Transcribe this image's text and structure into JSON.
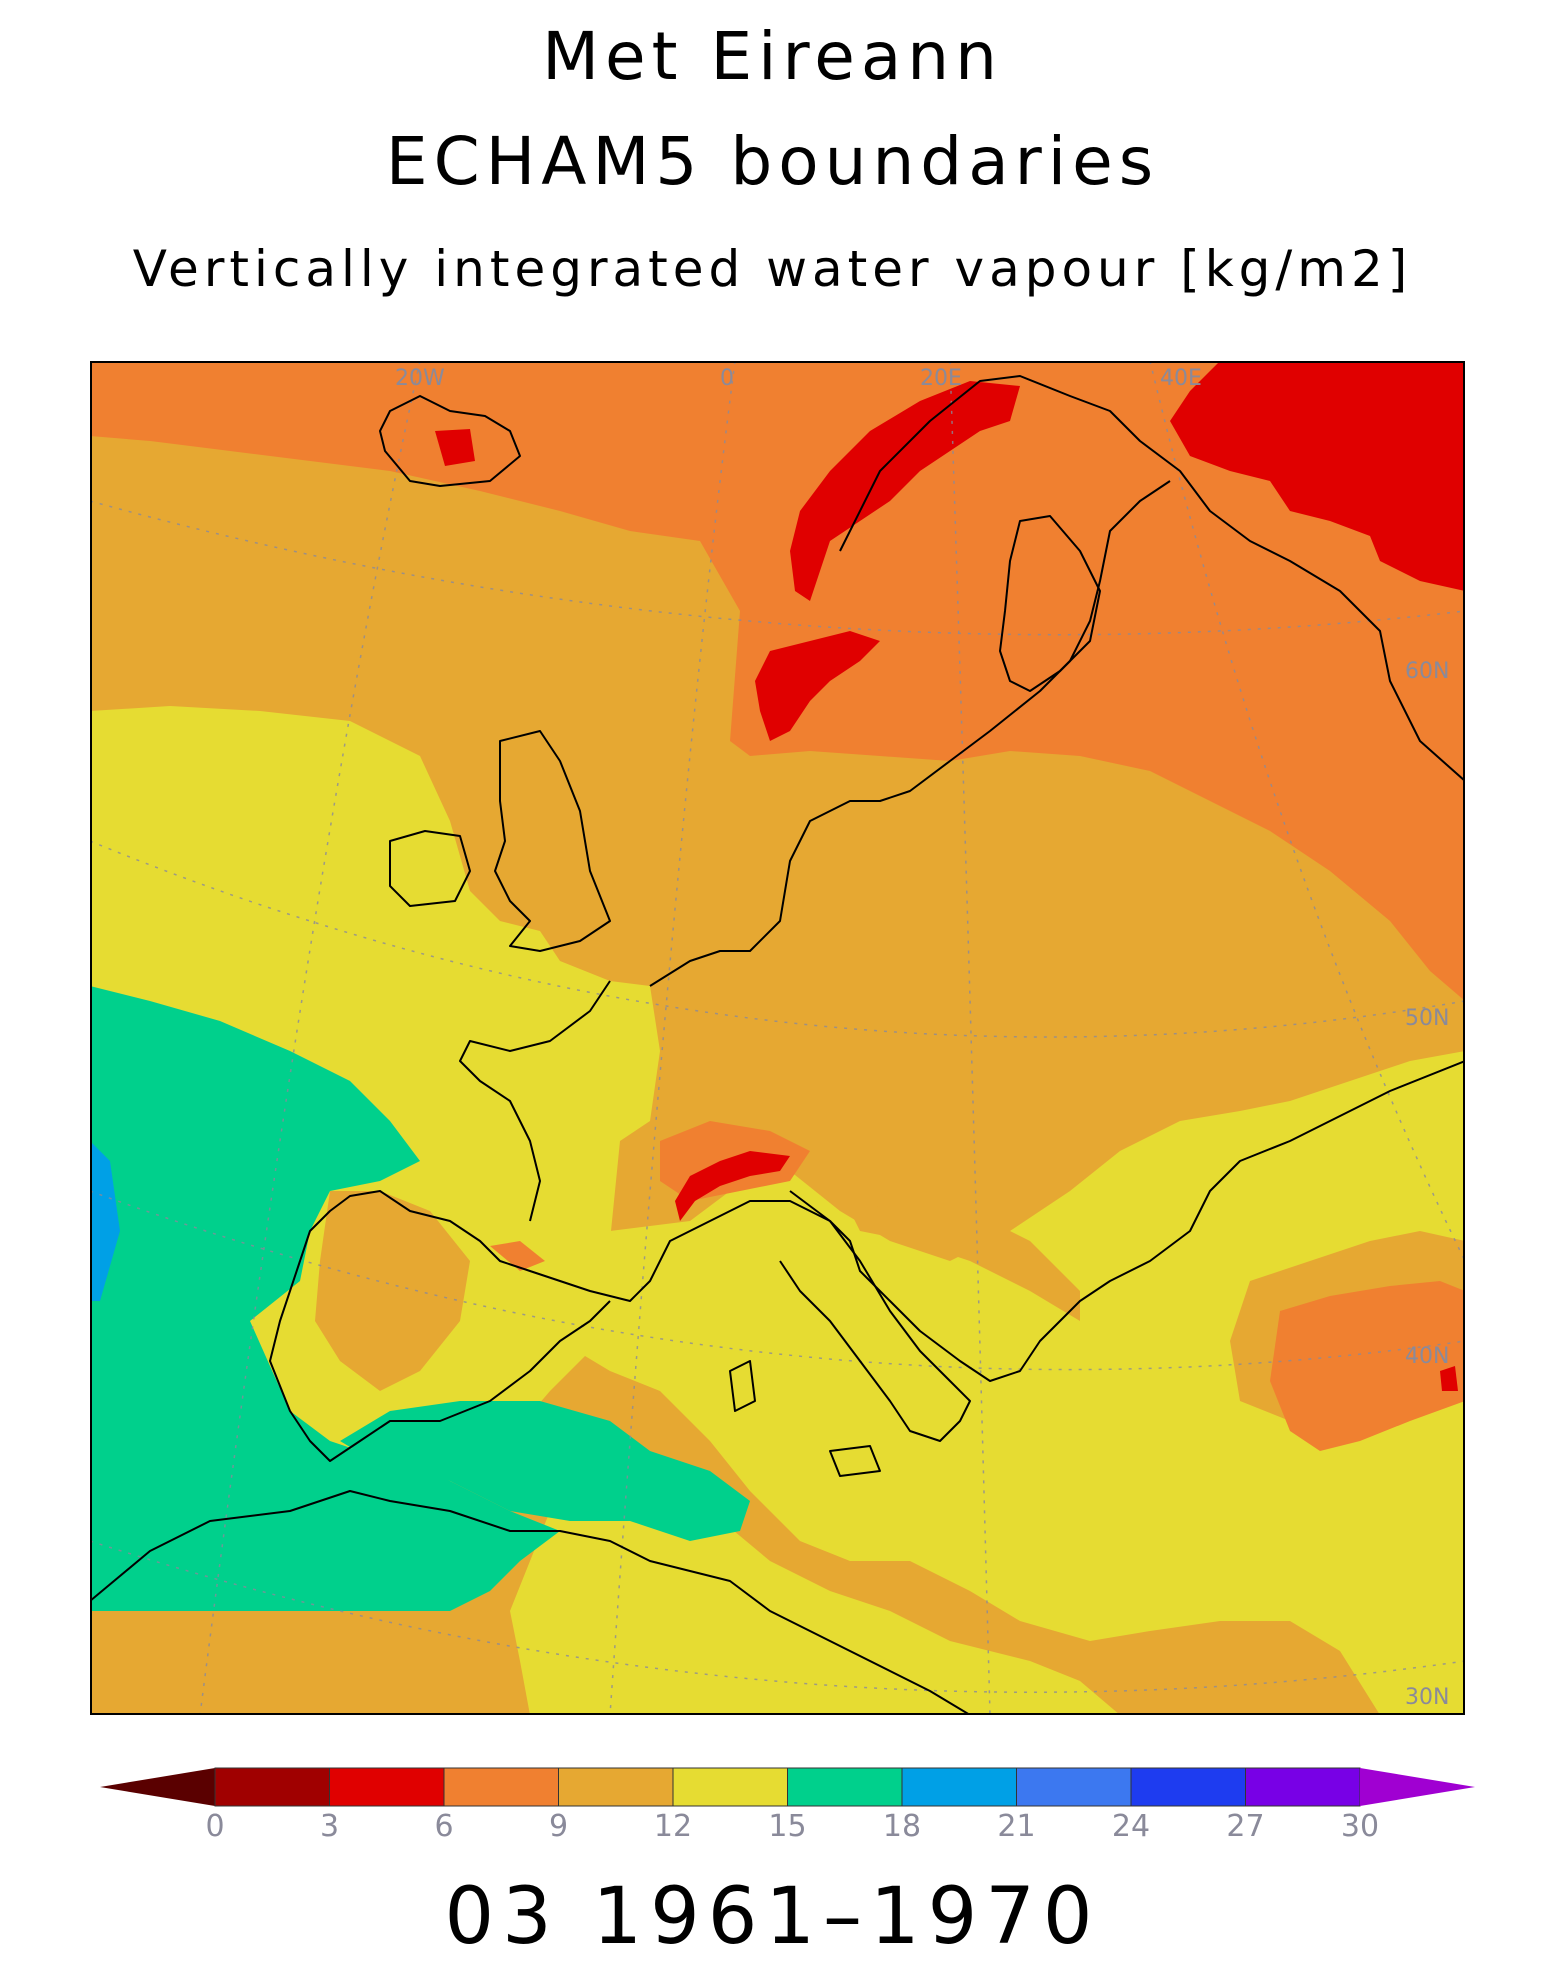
{
  "title": {
    "line1": "Met Eireann",
    "line2": "ECHAM5 boundaries",
    "line3": "Vertically integrated water vapour [kg/m2]"
  },
  "period": "03 1961–1970",
  "grid_labels": {
    "lon": [
      "20W",
      "0",
      "20E",
      "40E"
    ],
    "lat": [
      "60N",
      "50N",
      "40N",
      "30N"
    ]
  },
  "colorbar": {
    "ticks": [
      "0",
      "3",
      "6",
      "9",
      "12",
      "15",
      "18",
      "21",
      "24",
      "27",
      "30"
    ],
    "colors": [
      "#5a0000",
      "#a00000",
      "#e00000",
      "#f08030",
      "#e6a832",
      "#e6dc32",
      "#00d08c",
      "#00a0e6",
      "#3c78f0",
      "#1e3cf0",
      "#7800e6",
      "#a000d2"
    ]
  },
  "legend_colors": {
    "bin_0_3": "#a00000",
    "bin_3_6": "#e00000",
    "bin_6_9": "#f08030",
    "bin_9_12": "#e6a832",
    "bin_12_15": "#e6dc32",
    "bin_15_18": "#00d08c",
    "bin_18_21": "#00a0e6"
  }
}
